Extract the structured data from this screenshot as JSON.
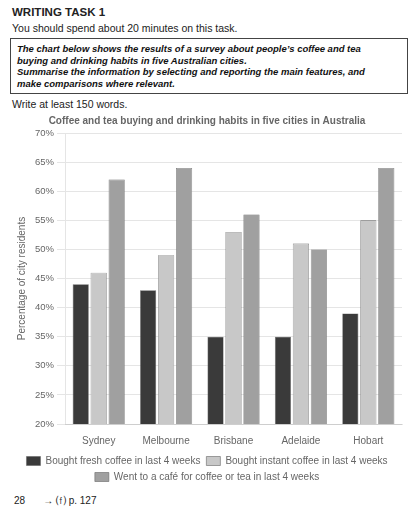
{
  "chart_data": {
    "type": "bar",
    "title": "Coffee and tea buying and drinking habits in five cities in Australia",
    "annotations": [
      [
        "WRITING TASK 1",
        "You should spend about 20 minutes on this task."
      ],
      [
        "The chart below shows the results of a survey about people’s coffee and tea",
        "buying and drinking habits in five Australian cities.",
        "Summarise the information by selecting and reporting the main features, and",
        "make comparisons where relevant."
      ],
      [
        "Write at least 150 words."
      ],
      [
        "28",
        "→ ⒡ p. 127"
      ]
    ],
    "categories": [
      "Sydney",
      "Melbourne",
      "Brisbane",
      "Adelaide",
      "Hobart"
    ],
    "series": [
      {
        "name": "Bought fresh coffee in last 4 weeks",
        "color": "#3a3a3a",
        "values": [
          44,
          43,
          35,
          35,
          39
        ]
      },
      {
        "name": "Bought instant coffee in last 4 weeks",
        "color": "#c8c8c8",
        "values": [
          46,
          49,
          53,
          51,
          55
        ]
      },
      {
        "name": "Went to a café for coffee or tea in last 4 weeks",
        "color": "#a0a0a0",
        "values": [
          62,
          64,
          56,
          50,
          64
        ]
      }
    ],
    "ylabel": "Percentage of city residents",
    "ylim": [
      20,
      70
    ],
    "yticks": [
      {
        "value": 20,
        "label": "20%"
      },
      {
        "value": 25,
        "label": "25%"
      },
      {
        "value": 30,
        "label": "30%"
      },
      {
        "value": 35,
        "label": "35%"
      },
      {
        "value": 40,
        "label": "40%"
      },
      {
        "value": 45,
        "label": "45%"
      },
      {
        "value": 50,
        "label": "50%"
      },
      {
        "value": 55,
        "label": "55%"
      },
      {
        "value": 60,
        "label": "60%"
      },
      {
        "value": 65,
        "label": "65%"
      },
      {
        "value": 70,
        "label": "70%"
      }
    ],
    "grid": true,
    "legend": "bottom"
  }
}
